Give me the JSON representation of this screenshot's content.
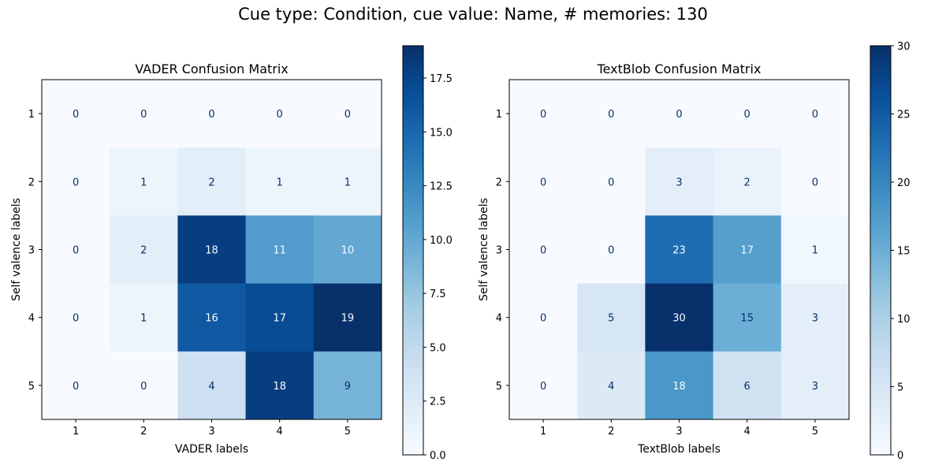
{
  "figure": {
    "suptitle": "Cue type: Condition, cue value: Name, # memories: 130"
  },
  "chart_data": [
    {
      "type": "heatmap",
      "title": "VADER Confusion Matrix",
      "xlabel": "VADER labels",
      "ylabel": "Self valence labels",
      "x_categories": [
        "1",
        "2",
        "3",
        "4",
        "5"
      ],
      "y_categories": [
        "1",
        "2",
        "3",
        "4",
        "5"
      ],
      "values": [
        [
          0,
          0,
          0,
          0,
          0
        ],
        [
          0,
          1,
          2,
          1,
          1
        ],
        [
          0,
          2,
          18,
          11,
          10
        ],
        [
          0,
          1,
          16,
          17,
          19
        ],
        [
          0,
          0,
          4,
          18,
          9
        ]
      ],
      "colormap": "Blues",
      "colorbar": {
        "vmin": 0,
        "vmax": 19,
        "ticks": [
          0,
          2.5,
          5,
          7.5,
          10,
          12.5,
          15,
          17.5
        ],
        "tick_labels": [
          "0.0",
          "2.5",
          "5.0",
          "7.5",
          "10.0",
          "12.5",
          "15.0",
          "17.5"
        ]
      }
    },
    {
      "type": "heatmap",
      "title": "TextBlob Confusion Matrix",
      "xlabel": "TextBlob labels",
      "ylabel": "Self valence labels",
      "x_categories": [
        "1",
        "2",
        "3",
        "4",
        "5"
      ],
      "y_categories": [
        "1",
        "2",
        "3",
        "4",
        "5"
      ],
      "values": [
        [
          0,
          0,
          0,
          0,
          0
        ],
        [
          0,
          0,
          3,
          2,
          0
        ],
        [
          0,
          0,
          23,
          17,
          1
        ],
        [
          0,
          5,
          30,
          15,
          3
        ],
        [
          0,
          4,
          18,
          6,
          3
        ]
      ],
      "colormap": "Blues",
      "colorbar": {
        "vmin": 0,
        "vmax": 30,
        "ticks": [
          0,
          5,
          10,
          15,
          20,
          25,
          30
        ],
        "tick_labels": [
          "0",
          "5",
          "10",
          "15",
          "20",
          "25",
          "30"
        ]
      }
    }
  ]
}
